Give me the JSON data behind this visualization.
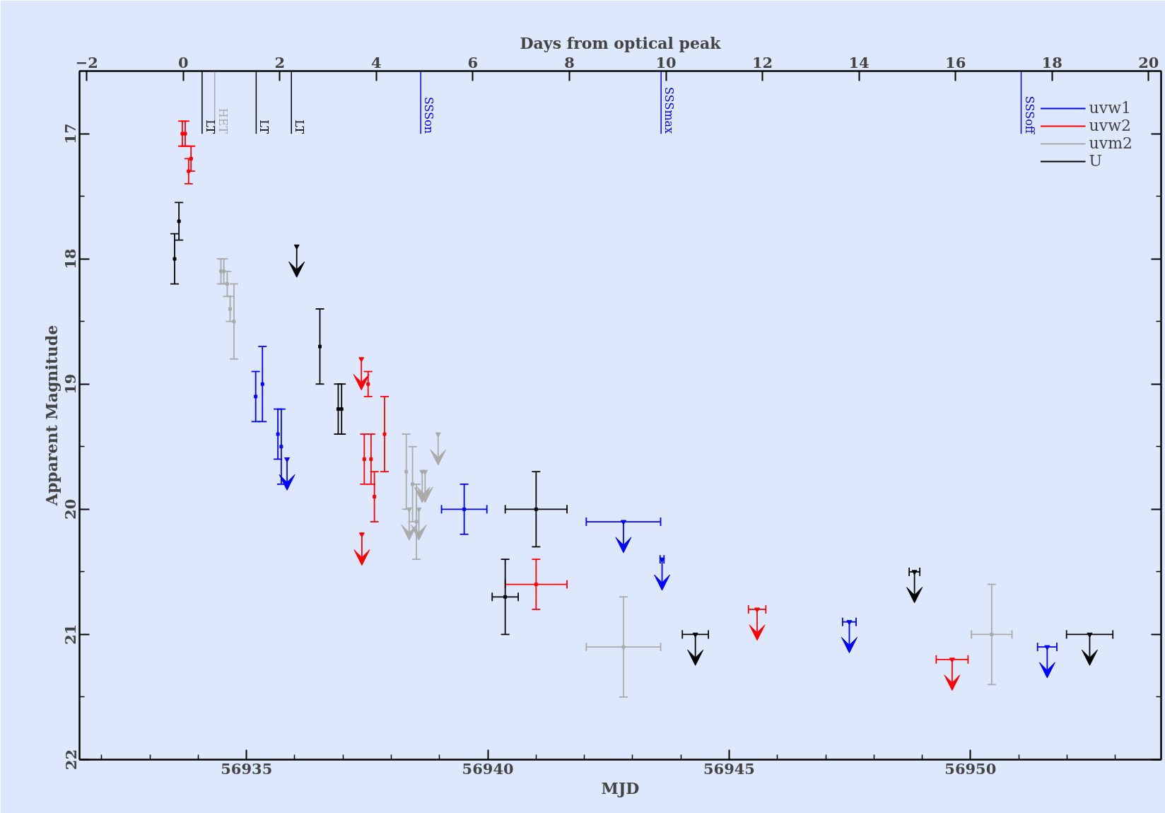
{
  "chart_data": {
    "type": "scatter",
    "xlabel": "MJD",
    "ylabel": "Apparent Magnitude",
    "x2label": "Days from optical peak",
    "xlim": [
      56931.54,
      56953.95
    ],
    "ylim": [
      22,
      16.5
    ],
    "x2lim": [
      -2.15,
      20.26
    ],
    "xticks": [
      {
        "value": 56932,
        "label": null
      },
      {
        "value": 56933,
        "label": null
      },
      {
        "value": 56934,
        "label": null
      },
      56935,
      {
        "value": 56936,
        "label": null
      },
      {
        "value": 56937,
        "label": null
      },
      {
        "value": 56938,
        "label": null
      },
      {
        "value": 56939,
        "label": null
      },
      56940,
      {
        "value": 56941,
        "label": null
      },
      {
        "value": 56942,
        "label": null
      },
      {
        "value": 56943,
        "label": null
      },
      {
        "value": 56944,
        "label": null
      },
      56945,
      {
        "value": 56946,
        "label": null
      },
      {
        "value": 56947,
        "label": null
      },
      {
        "value": 56948,
        "label": null
      },
      {
        "value": 56949,
        "label": null
      },
      56950,
      {
        "value": 56951,
        "label": null
      },
      {
        "value": 56952,
        "label": null
      },
      {
        "value": 56953,
        "label": null
      }
    ],
    "x2ticks": [
      -2,
      0,
      2,
      4,
      6,
      8,
      10,
      12,
      14,
      16,
      18,
      20
    ],
    "yticks": [
      17,
      {
        "value": 17.5,
        "label": null
      },
      18,
      {
        "value": 18.5,
        "label": null
      },
      19,
      {
        "value": 19.5,
        "label": null
      },
      20,
      {
        "value": 20.5,
        "label": null
      },
      21,
      {
        "value": 21.5,
        "label": null
      },
      22
    ],
    "series": [
      {
        "name": "uvw1",
        "color": "#0000ff",
        "marker": "square",
        "x": [
          56935.19,
          56935.33,
          56935.65,
          56935.72,
          56939.51
        ],
        "values": [
          19.1,
          19.0,
          19.4,
          19.5,
          20.0
        ],
        "errors": [
          0.2,
          0.3,
          0.2,
          0.3,
          0.2
        ],
        "xerrors": [
          null,
          null,
          null,
          null,
          0.47
        ]
      },
      {
        "name": "uvw2",
        "color": "#ff0000",
        "marker": "square",
        "x": [
          56933.67,
          56933.73,
          56933.8,
          56933.85,
          56937.44,
          56937.52,
          56937.58,
          56937.65,
          56937.86,
          56941.0
        ],
        "values": [
          17.0,
          17.0,
          17.3,
          17.2,
          19.6,
          19.0,
          19.6,
          19.9,
          19.4,
          20.6
        ],
        "errors": [
          0.1,
          0.1,
          0.1,
          0.1,
          0.2,
          0.1,
          0.2,
          0.2,
          0.3,
          0.2
        ],
        "xerrors": [
          null,
          null,
          null,
          null,
          null,
          null,
          null,
          null,
          null,
          0.64
        ]
      },
      {
        "name": "uvm2",
        "color": "#aaaaaa",
        "marker": "square",
        "x": [
          56934.47,
          56934.53,
          56934.6,
          56934.66,
          56934.74,
          56938.31,
          56938.44,
          56938.52,
          56942.81,
          56950.44
        ],
        "values": [
          18.1,
          18.1,
          18.2,
          18.4,
          18.5,
          19.7,
          19.8,
          20.1,
          21.1,
          21.0
        ],
        "errors": [
          0.1,
          0.1,
          0.1,
          0.1,
          0.3,
          0.3,
          0.3,
          0.3,
          0.4,
          0.4
        ],
        "xerrors": [
          null,
          null,
          null,
          null,
          null,
          null,
          null,
          null,
          0.77,
          0.42
        ]
      },
      {
        "name": "U",
        "color": "#000000",
        "marker": "square",
        "x": [
          56933.51,
          56933.6,
          56936.52,
          56936.9,
          56936.97,
          56940.36,
          56941.0
        ],
        "values": [
          18.0,
          17.7,
          18.7,
          19.2,
          19.2,
          20.7,
          20.0
        ],
        "errors": [
          0.2,
          0.15,
          0.3,
          0.2,
          0.2,
          0.3,
          0.3
        ],
        "xerrors": [
          null,
          null,
          null,
          null,
          null,
          0.27,
          0.64
        ]
      },
      {
        "color": "#0000ff",
        "marker": "triangle",
        "x": [
          56935.84,
          56942.81,
          56943.61,
          56947.49,
          56951.59
        ],
        "values": [
          19.6,
          20.1,
          20.4,
          20.9,
          21.1
        ],
        "xerrors": [
          null,
          0.77,
          0.04,
          0.14,
          0.2
        ]
      },
      {
        "color": "#ff0000",
        "marker": "triangle",
        "x": [
          56937.38,
          56937.39,
          56945.58,
          56949.62
        ],
        "values": [
          18.8,
          20.2,
          20.8,
          21.2
        ],
        "xerrors": [
          null,
          null,
          0.18,
          0.33
        ]
      },
      {
        "color": "#aaaaaa",
        "marker": "triangle",
        "x": [
          56938.37,
          56938.57,
          56938.64,
          56938.7,
          56938.97
        ],
        "values": [
          20.0,
          20.0,
          19.7,
          19.7,
          19.4
        ]
      },
      {
        "color": "#000000",
        "marker": "triangle",
        "x": [
          56936.04,
          56944.3,
          56948.84,
          56952.47
        ],
        "values": [
          17.9,
          21.0,
          20.5,
          21.0
        ],
        "xerrors": [
          null,
          0.27,
          0.11,
          0.48
        ]
      }
    ],
    "ref_lines": [
      {
        "axis": "x",
        "value": 56934.08,
        "label": "LT",
        "color": "#000000"
      },
      {
        "axis": "x",
        "value": 56934.34,
        "label": "HET",
        "color": "#aaaaaa"
      },
      {
        "axis": "x",
        "value": 56935.2,
        "label": "LT",
        "color": "#000000"
      },
      {
        "axis": "x",
        "value": 56935.93,
        "label": "LT",
        "color": "#000000"
      },
      {
        "axis": "x",
        "value": 56938.61,
        "label": "SSSon",
        "color": "#0000ff"
      },
      {
        "axis": "x",
        "value": 56943.59,
        "label": "SSSmax",
        "color": "#0000ff"
      },
      {
        "axis": "x",
        "value": 56951.05,
        "label": "SSSoff",
        "color": "#0000ff"
      }
    ],
    "legend": "top right",
    "grid": false
  }
}
